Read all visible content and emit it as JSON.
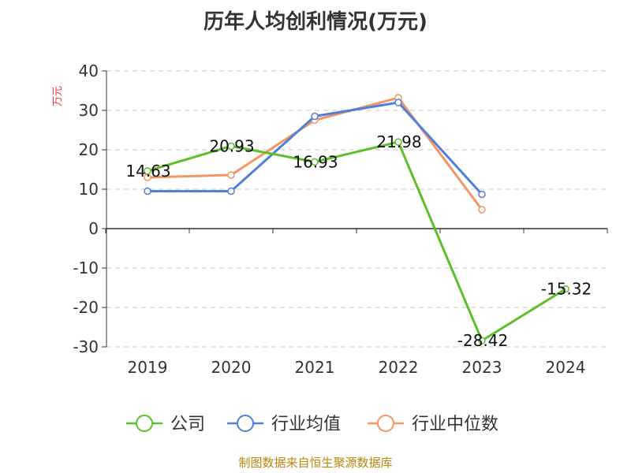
{
  "chart_data": {
    "type": "line",
    "title": "历年人均创利情况(万元)",
    "ylabel": "万元",
    "categories": [
      "2019",
      "2020",
      "2021",
      "2022",
      "2023",
      "2024"
    ],
    "ylim": [
      -30,
      40
    ],
    "yticks": [
      40,
      30,
      20,
      10,
      0,
      -10,
      -20,
      -30
    ],
    "grid": true,
    "legend_position": "bottom",
    "series": [
      {
        "name": "公司",
        "color": "#5cbf2a",
        "values": [
          14.63,
          20.93,
          16.93,
          21.98,
          -28.42,
          -15.32
        ],
        "labels": [
          "14.63",
          "20.93",
          "16.93",
          "21.98",
          "-28.42",
          "-15.32"
        ]
      },
      {
        "name": "行业均值",
        "color": "#4f7fd9",
        "values": [
          9.5,
          9.5,
          28.5,
          32.0,
          8.7,
          null
        ]
      },
      {
        "name": "行业中位数",
        "color": "#f59563",
        "values": [
          13.0,
          13.6,
          27.5,
          33.2,
          4.8,
          null
        ]
      }
    ]
  },
  "source": "制图数据来自恒生聚源数据库"
}
